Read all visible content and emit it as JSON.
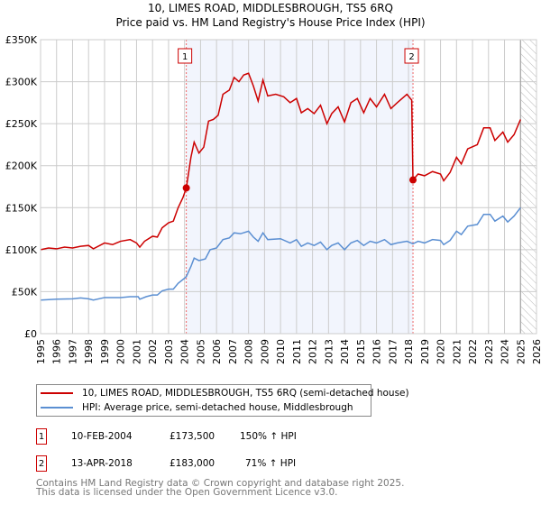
{
  "chart_data": {
    "type": "line",
    "title": "10, LIMES ROAD, MIDDLESBROUGH, TS5 6RQ",
    "subtitle": "Price paid vs. HM Land Registry's House Price Index (HPI)",
    "xlim": [
      1995,
      2026
    ],
    "ylim": [
      0,
      350000
    ],
    "yticks": [
      0,
      50000,
      100000,
      150000,
      200000,
      250000,
      300000,
      350000
    ],
    "ytick_labels": [
      "£0",
      "£50K",
      "£100K",
      "£150K",
      "£200K",
      "£250K",
      "£300K",
      "£350K"
    ],
    "xtick_labels": [
      "1995",
      "1996",
      "1997",
      "1998",
      "1999",
      "2000",
      "2001",
      "2002",
      "2003",
      "2004",
      "2005",
      "2006",
      "2007",
      "2008",
      "2009",
      "2010",
      "2011",
      "2012",
      "2013",
      "2014",
      "2015",
      "2016",
      "2017",
      "2018",
      "2019",
      "2020",
      "2021",
      "2022",
      "2023",
      "2024",
      "2025",
      "2026"
    ],
    "grid": true,
    "shaded_period": [
      2004.11,
      2018.28
    ],
    "forecast_hatch_from": 2025.0,
    "series": [
      {
        "name": "10, LIMES ROAD, MIDDLESBROUGH, TS5 6RQ (semi-detached house)",
        "color": "#cc0000",
        "points": [
          [
            1995,
            100000
          ],
          [
            1995.5,
            102000
          ],
          [
            1996,
            101000
          ],
          [
            1996.5,
            103000
          ],
          [
            1997,
            102000
          ],
          [
            1997.5,
            104000
          ],
          [
            1998,
            105000
          ],
          [
            1998.3,
            101000
          ],
          [
            1999,
            108000
          ],
          [
            1999.5,
            106000
          ],
          [
            2000,
            110000
          ],
          [
            2000.6,
            112000
          ],
          [
            2001.0,
            108000
          ],
          [
            2001.2,
            103000
          ],
          [
            2001.5,
            110000
          ],
          [
            2002,
            116000
          ],
          [
            2002.3,
            115000
          ],
          [
            2002.6,
            126000
          ],
          [
            2003,
            132000
          ],
          [
            2003.3,
            134000
          ],
          [
            2003.6,
            150000
          ],
          [
            2003.9,
            162000
          ],
          [
            2004.11,
            173500
          ],
          [
            2004.4,
            210000
          ],
          [
            2004.6,
            228000
          ],
          [
            2004.9,
            215000
          ],
          [
            2005.2,
            222000
          ],
          [
            2005.5,
            253000
          ],
          [
            2005.8,
            255000
          ],
          [
            2006.1,
            260000
          ],
          [
            2006.4,
            285000
          ],
          [
            2006.8,
            290000
          ],
          [
            2007.1,
            305000
          ],
          [
            2007.4,
            300000
          ],
          [
            2007.7,
            308000
          ],
          [
            2008.0,
            310000
          ],
          [
            2008.3,
            295000
          ],
          [
            2008.6,
            277000
          ],
          [
            2008.9,
            302000
          ],
          [
            2009.2,
            283000
          ],
          [
            2009.7,
            285000
          ],
          [
            2010.2,
            282000
          ],
          [
            2010.6,
            275000
          ],
          [
            2011.0,
            280000
          ],
          [
            2011.3,
            263000
          ],
          [
            2011.7,
            268000
          ],
          [
            2012.1,
            262000
          ],
          [
            2012.5,
            272000
          ],
          [
            2012.9,
            250000
          ],
          [
            2013.2,
            262000
          ],
          [
            2013.6,
            270000
          ],
          [
            2014.0,
            252000
          ],
          [
            2014.4,
            275000
          ],
          [
            2014.8,
            280000
          ],
          [
            2015.2,
            263000
          ],
          [
            2015.6,
            280000
          ],
          [
            2016.0,
            270000
          ],
          [
            2016.5,
            285000
          ],
          [
            2016.9,
            268000
          ],
          [
            2017.3,
            275000
          ],
          [
            2017.9,
            285000
          ],
          [
            2018.2,
            278000
          ],
          [
            2018.28,
            183000
          ],
          [
            2018.6,
            190000
          ],
          [
            2019,
            188000
          ],
          [
            2019.5,
            193000
          ],
          [
            2020.0,
            190000
          ],
          [
            2020.2,
            182000
          ],
          [
            2020.6,
            192000
          ],
          [
            2021.0,
            210000
          ],
          [
            2021.3,
            202000
          ],
          [
            2021.7,
            220000
          ],
          [
            2022.3,
            225000
          ],
          [
            2022.7,
            245000
          ],
          [
            2023.1,
            245000
          ],
          [
            2023.4,
            230000
          ],
          [
            2023.9,
            240000
          ],
          [
            2024.2,
            228000
          ],
          [
            2024.6,
            237000
          ],
          [
            2025.0,
            255000
          ]
        ]
      },
      {
        "name": "HPI: Average price, semi-detached house, Middlesbrough",
        "color": "#5b8fd2",
        "points": [
          [
            1995,
            40000
          ],
          [
            1996,
            41000
          ],
          [
            1997,
            41500
          ],
          [
            1997.5,
            42500
          ],
          [
            1998,
            41500
          ],
          [
            1998.3,
            40000
          ],
          [
            1999,
            43000
          ],
          [
            2000,
            43000
          ],
          [
            2000.6,
            44000
          ],
          [
            2001.1,
            44000
          ],
          [
            2001.2,
            41000
          ],
          [
            2001.6,
            44000
          ],
          [
            2002,
            46000
          ],
          [
            2002.3,
            46000
          ],
          [
            2002.6,
            51000
          ],
          [
            2003,
            53000
          ],
          [
            2003.3,
            53000
          ],
          [
            2003.6,
            60000
          ],
          [
            2004.0,
            66000
          ],
          [
            2004.11,
            68000
          ],
          [
            2004.4,
            80000
          ],
          [
            2004.6,
            90000
          ],
          [
            2004.9,
            87000
          ],
          [
            2005.3,
            89000
          ],
          [
            2005.6,
            100000
          ],
          [
            2006.0,
            102000
          ],
          [
            2006.4,
            112000
          ],
          [
            2006.8,
            114000
          ],
          [
            2007.1,
            120000
          ],
          [
            2007.5,
            119000
          ],
          [
            2008.0,
            122000
          ],
          [
            2008.3,
            115000
          ],
          [
            2008.6,
            110000
          ],
          [
            2008.9,
            120000
          ],
          [
            2009.2,
            112000
          ],
          [
            2010,
            113000
          ],
          [
            2010.6,
            108000
          ],
          [
            2011.0,
            112000
          ],
          [
            2011.3,
            104000
          ],
          [
            2011.7,
            108000
          ],
          [
            2012.1,
            105000
          ],
          [
            2012.5,
            109000
          ],
          [
            2012.9,
            100000
          ],
          [
            2013.2,
            105000
          ],
          [
            2013.6,
            108000
          ],
          [
            2014.0,
            100000
          ],
          [
            2014.4,
            108000
          ],
          [
            2014.8,
            111000
          ],
          [
            2015.2,
            105000
          ],
          [
            2015.6,
            110000
          ],
          [
            2016.0,
            108000
          ],
          [
            2016.5,
            112000
          ],
          [
            2016.9,
            106000
          ],
          [
            2017.3,
            108000
          ],
          [
            2017.9,
            110000
          ],
          [
            2018.28,
            107000
          ],
          [
            2018.6,
            110000
          ],
          [
            2019,
            108000
          ],
          [
            2019.5,
            112000
          ],
          [
            2020.0,
            111000
          ],
          [
            2020.2,
            106000
          ],
          [
            2020.6,
            111000
          ],
          [
            2021.0,
            122000
          ],
          [
            2021.3,
            118000
          ],
          [
            2021.7,
            128000
          ],
          [
            2022.3,
            130000
          ],
          [
            2022.7,
            142000
          ],
          [
            2023.1,
            142000
          ],
          [
            2023.4,
            134000
          ],
          [
            2023.9,
            140000
          ],
          [
            2024.2,
            133000
          ],
          [
            2024.6,
            140000
          ],
          [
            2025.0,
            150000
          ]
        ]
      }
    ],
    "sales": [
      {
        "label": "1",
        "year": 2004.11,
        "price": 173500
      },
      {
        "label": "2",
        "year": 2018.28,
        "price": 183000
      }
    ]
  },
  "legend": [
    {
      "label": "10, LIMES ROAD, MIDDLESBROUGH, TS5 6RQ (semi-detached house)",
      "color": "#cc0000"
    },
    {
      "label": "HPI: Average price, semi-detached house, Middlesbrough",
      "color": "#5b8fd2"
    }
  ],
  "transactions": [
    {
      "num": "1",
      "date": "10-FEB-2004",
      "price": "£173,500",
      "hpi": "150% ↑ HPI"
    },
    {
      "num": "2",
      "date": "13-APR-2018",
      "price": "£183,000",
      "hpi": "71% ↑ HPI"
    }
  ],
  "footer": {
    "line1": "Contains HM Land Registry data © Crown copyright and database right 2025.",
    "line2": "This data is licensed under the Open Government Licence v3.0."
  }
}
